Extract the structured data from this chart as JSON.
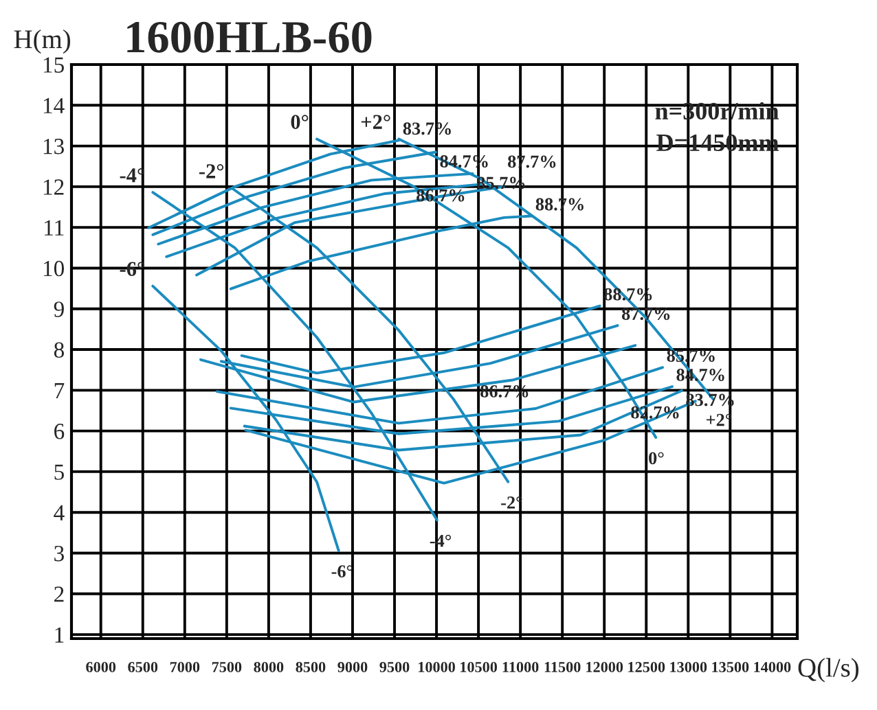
{
  "chart_data": {
    "type": "line",
    "title": "1600HLB-60",
    "xlabel": "Q(l/s)",
    "ylabel": "H(m)",
    "xlim": [
      5650,
      14300
    ],
    "ylim": [
      0.9,
      15
    ],
    "xticks": [
      6000,
      6500,
      7000,
      7500,
      8000,
      8500,
      9000,
      9500,
      10000,
      10500,
      11000,
      11500,
      12000,
      12500,
      13000,
      13500,
      14000
    ],
    "yticks": [
      1,
      2,
      3,
      4,
      5,
      6,
      7,
      8,
      9,
      10,
      11,
      12,
      13,
      14,
      15
    ],
    "grid": true,
    "legend": false,
    "marker": "none",
    "line_style": "solid",
    "series": [
      {
        "name": "+2°",
        "color": "#1b8cbf",
        "x": [
          9551,
          10529,
          11669,
          12483,
          13298
        ],
        "values": [
          13.17,
          12.19,
          10.5,
          8.81,
          6.78
        ]
      },
      {
        "name": "0°",
        "color": "#1b8cbf",
        "x": [
          8574,
          9714,
          10854,
          11669,
          12239,
          12614
        ],
        "values": [
          13.17,
          12.02,
          10.5,
          8.81,
          7.12,
          5.84
        ]
      },
      {
        "name": "-2°",
        "color": "#1b8cbf",
        "x": [
          7564,
          8574,
          9551,
          10203,
          10854
        ],
        "values": [
          11.96,
          10.5,
          8.47,
          6.78,
          4.75
        ]
      },
      {
        "name": "-4°",
        "color": "#1b8cbf",
        "x": [
          6619,
          7596,
          8574,
          9225,
          10007
        ],
        "values": [
          11.86,
          10.5,
          8.3,
          6.44,
          3.81
        ]
      },
      {
        "name": "-6°",
        "color": "#1b8cbf",
        "x": [
          6619,
          7434,
          8085,
          8574,
          8834
        ],
        "values": [
          9.56,
          7.97,
          6.28,
          4.75,
          3.06
        ]
      },
      {
        "name": "83.7%",
        "color": "#1b8cbf",
        "x": [
          6570,
          7597,
          8737,
          9551
        ],
        "values": [
          10.99,
          12.0,
          12.8,
          13.14
        ]
      },
      {
        "name": "84.7%",
        "color": "#1b8cbf",
        "x": [
          6619,
          7759,
          8900,
          9991
        ],
        "values": [
          10.82,
          11.76,
          12.46,
          12.85
        ]
      },
      {
        "name": "85.7%",
        "color": "#1b8cbf",
        "x": [
          6684,
          7922,
          9225,
          10431
        ],
        "values": [
          10.59,
          11.49,
          12.16,
          12.32
        ]
      },
      {
        "name": "86.7%",
        "color": "#1b8cbf",
        "x": [
          6782,
          8085,
          9388,
          10529
        ],
        "values": [
          10.28,
          11.22,
          11.83,
          12.06
        ]
      },
      {
        "name": "87.7%",
        "color": "#1b8cbf",
        "x": [
          7141,
          8313,
          10072,
          10799
        ],
        "values": [
          9.83,
          11.12,
          11.77,
          12.0
        ]
      },
      {
        "name": "88.7%",
        "color": "#1b8cbf",
        "x": [
          7548,
          8460,
          10089,
          10806,
          11132
        ],
        "values": [
          9.49,
          10.16,
          10.94,
          11.24,
          11.28
        ]
      },
      {
        "name": "88.7%",
        "color": "#1b8cbf",
        "x": [
          7678,
          8574,
          10089,
          11946
        ],
        "values": [
          7.85,
          7.42,
          7.92,
          9.07
        ]
      },
      {
        "name": "87.7%",
        "color": "#1b8cbf",
        "x": [
          7434,
          9013,
          10643,
          12158
        ],
        "values": [
          7.71,
          7.08,
          7.66,
          8.59
        ]
      },
      {
        "name": "86.7%",
        "color": "#1b8cbf",
        "x": [
          7190,
          9013,
          10904,
          12369
        ],
        "values": [
          7.75,
          6.71,
          7.25,
          8.1
        ]
      },
      {
        "name": "85.7%",
        "color": "#1b8cbf",
        "x": [
          7385,
          9551,
          11181,
          12695
        ],
        "values": [
          6.97,
          6.19,
          6.55,
          7.56
        ]
      },
      {
        "name": "84.7%",
        "color": "#1b8cbf",
        "x": [
          7548,
          9551,
          11458,
          12809
        ],
        "values": [
          6.56,
          5.93,
          6.24,
          7.09
        ]
      },
      {
        "name": "83.7%",
        "color": "#1b8cbf",
        "x": [
          7711,
          9551,
          11718,
          12923
        ],
        "values": [
          6.12,
          5.53,
          5.9,
          6.99
        ]
      },
      {
        "name": "82.7%",
        "color": "#1b8cbf",
        "x": [
          7727,
          10089,
          11995,
          13086
        ],
        "values": [
          6.02,
          4.72,
          5.77,
          6.73
        ]
      }
    ],
    "annotations": [
      {
        "text": "+2°",
        "x": 9551,
        "y": 13.17
      },
      {
        "text": "0°",
        "x": 8574,
        "y": 13.17
      },
      {
        "text": "-2°",
        "x": 7564,
        "y": 11.96
      },
      {
        "text": "-4°",
        "x": 6619,
        "y": 11.86
      },
      {
        "text": "-6°",
        "x": 6619,
        "y": 9.56
      },
      "n=300r/min",
      "D=1450mm"
    ]
  }
}
